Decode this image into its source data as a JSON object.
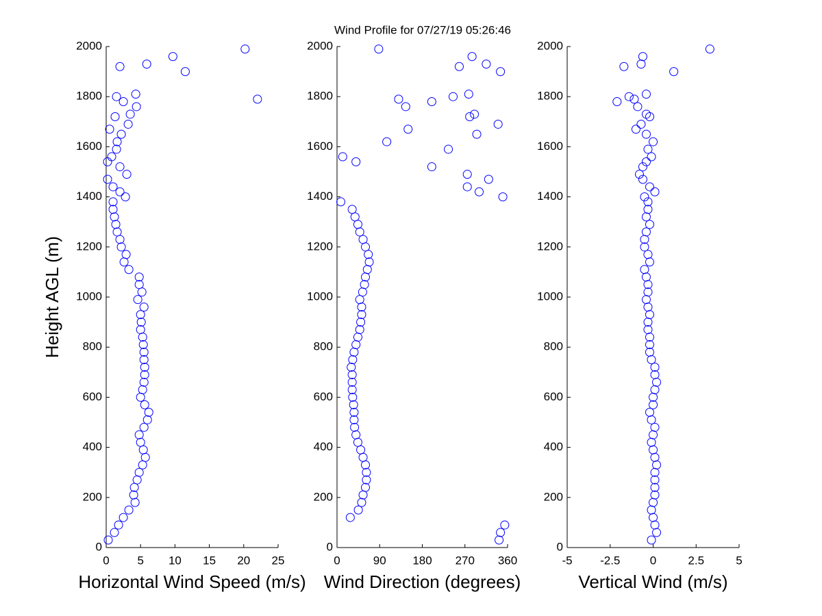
{
  "chart_data": [
    {
      "type": "scatter",
      "title": "Wind Profile for  07/27/19 05:26:46",
      "xlabel": "Horizontal Wind Speed (m/s)",
      "ylabel": "Height AGL (m)",
      "color": "#0000ff",
      "xlim": [
        0,
        25
      ],
      "xticks": [
        0,
        5,
        10,
        15,
        20,
        25
      ],
      "ylim": [
        0,
        2000
      ],
      "yticks": [
        0,
        200,
        400,
        600,
        800,
        1000,
        1200,
        1400,
        1600,
        1800,
        2000
      ],
      "x": [
        0.3,
        1.2,
        1.8,
        2.5,
        3.3,
        4.2,
        4.0,
        4.1,
        4.5,
        4.8,
        5.3,
        5.7,
        5.4,
        5.0,
        4.8,
        5.5,
        6.0,
        6.2,
        5.6,
        5.0,
        5.3,
        5.5,
        5.6,
        5.6,
        5.5,
        5.5,
        5.4,
        5.3,
        5.0,
        5.1,
        5.0,
        5.5,
        4.6,
        5.2,
        4.8,
        4.8,
        3.3,
        2.6,
        2.9,
        2.2,
        2.0,
        1.6,
        1.4,
        1.2,
        1.0,
        1.0,
        2.8,
        2.0,
        1.0,
        0.2,
        3.0,
        2.0,
        0.2,
        0.8,
        1.5,
        1.6,
        2.2,
        0.5,
        3.2,
        1.3,
        3.5,
        4.4,
        2.5,
        22.0,
        1.5,
        4.3,
        11.5,
        2.0,
        5.9,
        9.7,
        20.2
      ],
      "y": [
        30,
        60,
        90,
        120,
        150,
        180,
        210,
        240,
        270,
        300,
        330,
        360,
        390,
        420,
        450,
        480,
        510,
        540,
        570,
        600,
        630,
        660,
        690,
        720,
        750,
        780,
        810,
        840,
        870,
        900,
        930,
        960,
        990,
        1020,
        1050,
        1080,
        1110,
        1140,
        1170,
        1200,
        1230,
        1260,
        1290,
        1320,
        1350,
        1380,
        1400,
        1420,
        1440,
        1470,
        1490,
        1520,
        1540,
        1560,
        1590,
        1620,
        1650,
        1670,
        1690,
        1720,
        1730,
        1760,
        1780,
        1790,
        1800,
        1810,
        1900,
        1920,
        1930,
        1960,
        1990
      ]
    },
    {
      "type": "scatter",
      "xlabel": "Wind Direction (degrees)",
      "color": "#0000ff",
      "xlim": [
        0,
        360
      ],
      "xticks": [
        0,
        90,
        180,
        270,
        360
      ],
      "ylim": [
        0,
        2000
      ],
      "yticks": [
        0,
        200,
        400,
        600,
        800,
        1000,
        1200,
        1400,
        1600,
        1800,
        2000
      ],
      "x": [
        342,
        345,
        354,
        28,
        45,
        52,
        55,
        60,
        62,
        62,
        60,
        55,
        50,
        44,
        40,
        37,
        36,
        36,
        35,
        33,
        32,
        32,
        32,
        30,
        33,
        36,
        40,
        44,
        48,
        50,
        52,
        52,
        48,
        54,
        58,
        60,
        64,
        68,
        66,
        60,
        55,
        48,
        44,
        38,
        32,
        8,
        350,
        300,
        275,
        320,
        275,
        200,
        40,
        12,
        235,
        105,
        295,
        150,
        340,
        280,
        290,
        145,
        200,
        130,
        245,
        278,
        345,
        258,
        315,
        285,
        88
      ],
      "y": [
        30,
        60,
        90,
        120,
        150,
        180,
        210,
        240,
        270,
        300,
        330,
        360,
        390,
        420,
        450,
        480,
        510,
        540,
        570,
        600,
        630,
        660,
        690,
        720,
        750,
        780,
        810,
        840,
        870,
        900,
        930,
        960,
        990,
        1020,
        1050,
        1080,
        1110,
        1140,
        1170,
        1200,
        1230,
        1260,
        1290,
        1320,
        1350,
        1380,
        1400,
        1420,
        1440,
        1470,
        1490,
        1520,
        1540,
        1560,
        1590,
        1620,
        1650,
        1670,
        1690,
        1720,
        1730,
        1760,
        1780,
        1790,
        1800,
        1810,
        1900,
        1920,
        1930,
        1960,
        1990
      ]
    },
    {
      "type": "scatter",
      "xlabel": "Vertical Wind (m/s)",
      "color": "#0000ff",
      "xlim": [
        -5,
        5
      ],
      "xticks": [
        -5,
        -2.5,
        0,
        2.5,
        5
      ],
      "ylim": [
        0,
        2000
      ],
      "yticks": [
        0,
        200,
        400,
        600,
        800,
        1000,
        1200,
        1400,
        1600,
        1800,
        2000
      ],
      "x": [
        -0.1,
        0.2,
        0.1,
        0,
        -0.1,
        0,
        0.1,
        0.1,
        0.1,
        0.1,
        0.2,
        0.1,
        0,
        -0.1,
        0,
        0.1,
        -0.1,
        -0.2,
        0,
        0,
        0.1,
        0.2,
        0.1,
        0.1,
        -0.1,
        -0.2,
        -0.2,
        -0.2,
        -0.3,
        -0.3,
        -0.2,
        -0.3,
        -0.4,
        -0.3,
        -0.3,
        -0.4,
        -0.5,
        -0.2,
        -0.3,
        -0.5,
        -0.5,
        -0.4,
        -0.2,
        -0.4,
        -0.3,
        -0.3,
        -0.5,
        0.1,
        -0.2,
        -0.6,
        -0.8,
        -0.6,
        -0.4,
        -0.1,
        -0.3,
        0,
        -0.4,
        -1.0,
        -0.7,
        -0.2,
        -0.4,
        -0.9,
        -2.1,
        -1.1,
        -1.4,
        -0.4,
        1.2,
        -1.7,
        -0.7,
        -0.6,
        3.3
      ],
      "y": [
        30,
        60,
        90,
        120,
        150,
        180,
        210,
        240,
        270,
        300,
        330,
        360,
        390,
        420,
        450,
        480,
        510,
        540,
        570,
        600,
        630,
        660,
        690,
        720,
        750,
        780,
        810,
        840,
        870,
        900,
        930,
        960,
        990,
        1020,
        1050,
        1080,
        1110,
        1140,
        1170,
        1200,
        1230,
        1260,
        1290,
        1320,
        1350,
        1380,
        1400,
        1420,
        1440,
        1470,
        1490,
        1520,
        1540,
        1560,
        1590,
        1620,
        1650,
        1670,
        1690,
        1720,
        1730,
        1760,
        1780,
        1790,
        1800,
        1810,
        1900,
        1920,
        1930,
        1960,
        1990
      ]
    }
  ]
}
